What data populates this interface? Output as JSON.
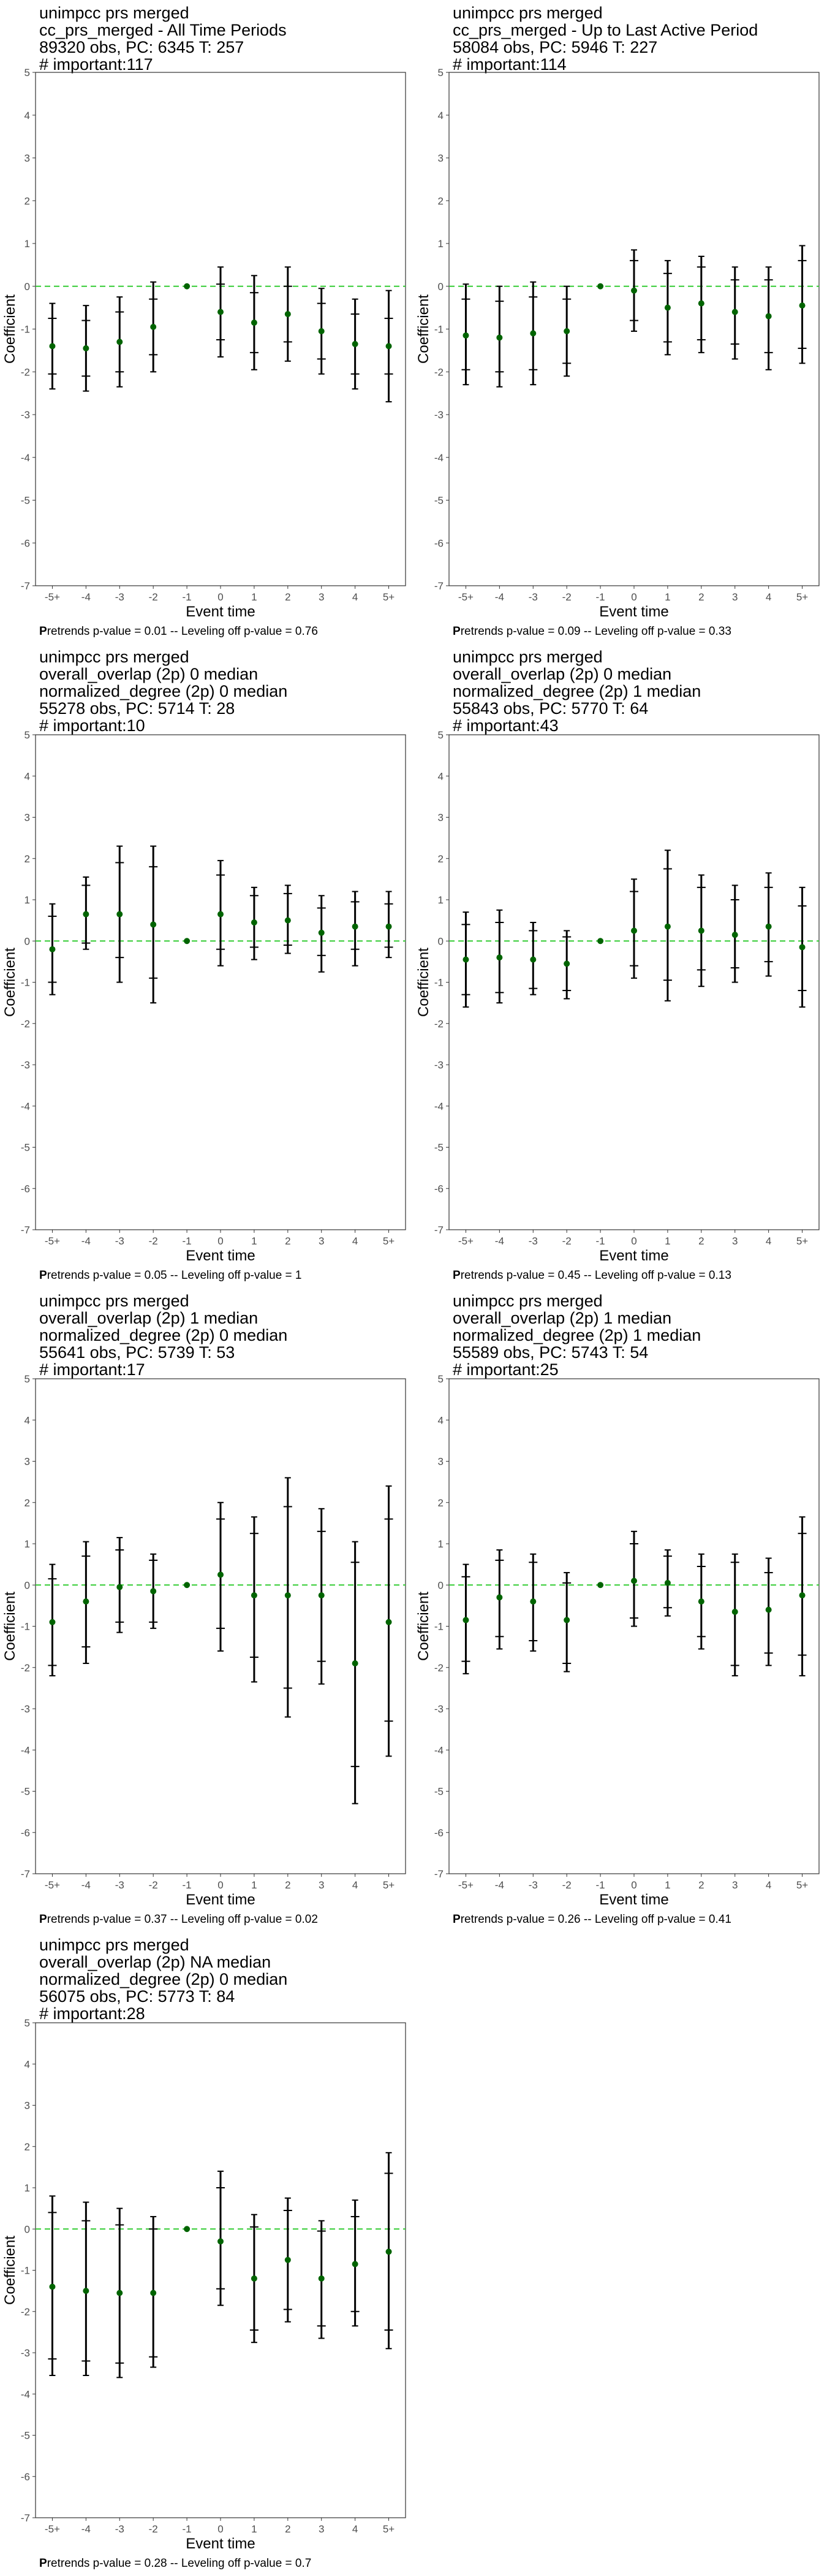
{
  "chart_data": [
    {
      "type": "errorbar",
      "title_lines": [
        "unimpcc prs merged",
        "cc_prs_merged - All Time Periods",
        "89320 obs, PC: 6345 T: 257",
        "# important:117"
      ],
      "xlabel": "Event time",
      "ylabel": "Coefficient",
      "categories": [
        "-5+",
        "-4",
        "-3",
        "-2",
        "-1",
        "0",
        "1",
        "2",
        "3",
        "4",
        "5+"
      ],
      "ylim": [
        -7,
        5
      ],
      "yticks": [
        -7,
        -6,
        -5,
        -4,
        -3,
        -2,
        -1,
        0,
        1,
        2,
        3,
        4,
        5
      ],
      "reference_line": 0,
      "point_color": "#006400",
      "reference_color": "#33cc33",
      "estimate": [
        -1.4,
        -1.45,
        -1.3,
        -0.95,
        0,
        -0.6,
        -0.85,
        -0.65,
        -1.05,
        -1.35,
        -1.4
      ],
      "ci_inner": [
        [
          -2.05,
          -0.75
        ],
        [
          -2.1,
          -0.8
        ],
        [
          -2.0,
          -0.6
        ],
        [
          -1.6,
          -0.3
        ],
        [
          0,
          0
        ],
        [
          -1.25,
          0.05
        ],
        [
          -1.55,
          -0.15
        ],
        [
          -1.3,
          0.0
        ],
        [
          -1.7,
          -0.4
        ],
        [
          -2.05,
          -0.65
        ],
        [
          -2.05,
          -0.75
        ]
      ],
      "ci_outer": [
        [
          -2.4,
          -0.4
        ],
        [
          -2.45,
          -0.45
        ],
        [
          -2.35,
          -0.25
        ],
        [
          -2.0,
          0.1
        ],
        [
          0,
          0
        ],
        [
          -1.65,
          0.45
        ],
        [
          -1.95,
          0.25
        ],
        [
          -1.75,
          0.45
        ],
        [
          -2.05,
          -0.05
        ],
        [
          -2.4,
          -0.3
        ],
        [
          -2.7,
          -0.1
        ]
      ],
      "caption_bold": "P",
      "caption": "retrends p-value = 0.01 -- Leveling off p-value = 0.76"
    },
    {
      "type": "errorbar",
      "title_lines": [
        "unimpcc prs merged",
        "cc_prs_merged - Up to Last Active Period",
        "58084 obs, PC: 5946 T: 227",
        "# important:114"
      ],
      "xlabel": "Event time",
      "ylabel": "Coefficient",
      "categories": [
        "-5+",
        "-4",
        "-3",
        "-2",
        "-1",
        "0",
        "1",
        "2",
        "3",
        "4",
        "5+"
      ],
      "ylim": [
        -7,
        5
      ],
      "yticks": [
        -7,
        -6,
        -5,
        -4,
        -3,
        -2,
        -1,
        0,
        1,
        2,
        3,
        4,
        5
      ],
      "reference_line": 0,
      "point_color": "#006400",
      "reference_color": "#33cc33",
      "estimate": [
        -1.15,
        -1.2,
        -1.1,
        -1.05,
        0,
        -0.1,
        -0.5,
        -0.4,
        -0.6,
        -0.7,
        -0.45
      ],
      "ci_inner": [
        [
          -1.95,
          -0.3
        ],
        [
          -2.0,
          -0.35
        ],
        [
          -1.95,
          -0.25
        ],
        [
          -1.8,
          -0.3
        ],
        [
          0,
          0
        ],
        [
          -0.8,
          0.6
        ],
        [
          -1.3,
          0.3
        ],
        [
          -1.25,
          0.45
        ],
        [
          -1.35,
          0.15
        ],
        [
          -1.55,
          0.15
        ],
        [
          -1.45,
          0.6
        ]
      ],
      "ci_outer": [
        [
          -2.3,
          0.05
        ],
        [
          -2.35,
          0.0
        ],
        [
          -2.3,
          0.1
        ],
        [
          -2.1,
          0.0
        ],
        [
          0,
          0
        ],
        [
          -1.05,
          0.85
        ],
        [
          -1.6,
          0.6
        ],
        [
          -1.55,
          0.7
        ],
        [
          -1.7,
          0.45
        ],
        [
          -1.95,
          0.45
        ],
        [
          -1.8,
          0.95
        ]
      ],
      "caption_bold": "P",
      "caption": "retrends p-value = 0.09 -- Leveling off p-value = 0.33"
    },
    {
      "type": "errorbar",
      "title_lines": [
        "unimpcc prs merged",
        "overall_overlap (2p) 0 median",
        "normalized_degree (2p) 0 median",
        "55278 obs, PC: 5714 T: 28",
        "# important:10"
      ],
      "xlabel": "Event time",
      "ylabel": "Coefficient",
      "categories": [
        "-5+",
        "-4",
        "-3",
        "-2",
        "-1",
        "0",
        "1",
        "2",
        "3",
        "4",
        "5+"
      ],
      "ylim": [
        -7,
        5
      ],
      "yticks": [
        -7,
        -6,
        -5,
        -4,
        -3,
        -2,
        -1,
        0,
        1,
        2,
        3,
        4,
        5
      ],
      "reference_line": 0,
      "point_color": "#006400",
      "reference_color": "#33cc33",
      "estimate": [
        -0.2,
        0.65,
        0.65,
        0.4,
        0,
        0.65,
        0.45,
        0.5,
        0.2,
        0.35,
        0.35
      ],
      "ci_inner": [
        [
          -1.0,
          0.6
        ],
        [
          -0.05,
          1.35
        ],
        [
          -0.4,
          1.9
        ],
        [
          -0.9,
          1.8
        ],
        [
          0,
          0
        ],
        [
          -0.2,
          1.6
        ],
        [
          -0.15,
          1.1
        ],
        [
          -0.1,
          1.15
        ],
        [
          -0.35,
          0.8
        ],
        [
          -0.2,
          0.95
        ],
        [
          -0.15,
          0.9
        ]
      ],
      "ci_outer": [
        [
          -1.3,
          0.9
        ],
        [
          -0.2,
          1.55
        ],
        [
          -1.0,
          2.3
        ],
        [
          -1.5,
          2.3
        ],
        [
          0,
          0
        ],
        [
          -0.6,
          1.95
        ],
        [
          -0.45,
          1.3
        ],
        [
          -0.3,
          1.35
        ],
        [
          -0.75,
          1.1
        ],
        [
          -0.6,
          1.2
        ],
        [
          -0.4,
          1.2
        ]
      ],
      "caption_bold": "P",
      "caption": "retrends p-value = 0.05 -- Leveling off p-value = 1"
    },
    {
      "type": "errorbar",
      "title_lines": [
        "unimpcc prs merged",
        "overall_overlap (2p) 0 median",
        "normalized_degree (2p) 1 median",
        "55843 obs, PC: 5770 T: 64",
        "# important:43"
      ],
      "xlabel": "Event time",
      "ylabel": "Coefficient",
      "categories": [
        "-5+",
        "-4",
        "-3",
        "-2",
        "-1",
        "0",
        "1",
        "2",
        "3",
        "4",
        "5+"
      ],
      "ylim": [
        -7,
        5
      ],
      "yticks": [
        -7,
        -6,
        -5,
        -4,
        -3,
        -2,
        -1,
        0,
        1,
        2,
        3,
        4,
        5
      ],
      "reference_line": 0,
      "point_color": "#006400",
      "reference_color": "#33cc33",
      "estimate": [
        -0.45,
        -0.4,
        -0.45,
        -0.55,
        0,
        0.25,
        0.35,
        0.25,
        0.15,
        0.35,
        -0.15
      ],
      "ci_inner": [
        [
          -1.3,
          0.4
        ],
        [
          -1.25,
          0.45
        ],
        [
          -1.15,
          0.25
        ],
        [
          -1.2,
          0.1
        ],
        [
          0,
          0
        ],
        [
          -0.6,
          1.2
        ],
        [
          -0.95,
          1.75
        ],
        [
          -0.7,
          1.3
        ],
        [
          -0.65,
          1.0
        ],
        [
          -0.5,
          1.3
        ],
        [
          -1.2,
          0.85
        ]
      ],
      "ci_outer": [
        [
          -1.6,
          0.7
        ],
        [
          -1.5,
          0.75
        ],
        [
          -1.3,
          0.45
        ],
        [
          -1.4,
          0.25
        ],
        [
          0,
          0
        ],
        [
          -0.9,
          1.5
        ],
        [
          -1.45,
          2.2
        ],
        [
          -1.1,
          1.6
        ],
        [
          -1.0,
          1.35
        ],
        [
          -0.85,
          1.65
        ],
        [
          -1.6,
          1.3
        ]
      ],
      "caption_bold": "P",
      "caption": "retrends p-value = 0.45 -- Leveling off p-value = 0.13"
    },
    {
      "type": "errorbar",
      "title_lines": [
        "unimpcc prs merged",
        "overall_overlap (2p) 1 median",
        "normalized_degree (2p) 0 median",
        "55641 obs, PC: 5739 T: 53",
        "# important:17"
      ],
      "xlabel": "Event time",
      "ylabel": "Coefficient",
      "categories": [
        "-5+",
        "-4",
        "-3",
        "-2",
        "-1",
        "0",
        "1",
        "2",
        "3",
        "4",
        "5+"
      ],
      "ylim": [
        -7,
        5
      ],
      "yticks": [
        -7,
        -6,
        -5,
        -4,
        -3,
        -2,
        -1,
        0,
        1,
        2,
        3,
        4,
        5
      ],
      "reference_line": 0,
      "point_color": "#006400",
      "reference_color": "#33cc33",
      "estimate": [
        -0.9,
        -0.4,
        -0.05,
        -0.15,
        0,
        0.25,
        -0.25,
        -0.25,
        -0.25,
        -1.9,
        -0.9
      ],
      "ci_inner": [
        [
          -1.95,
          0.15
        ],
        [
          -1.5,
          0.7
        ],
        [
          -0.9,
          0.85
        ],
        [
          -0.9,
          0.6
        ],
        [
          0,
          0
        ],
        [
          -1.05,
          1.6
        ],
        [
          -1.75,
          1.25
        ],
        [
          -2.5,
          1.9
        ],
        [
          -1.85,
          1.3
        ],
        [
          -4.4,
          0.55
        ],
        [
          -3.3,
          1.6
        ]
      ],
      "ci_outer": [
        [
          -2.2,
          0.5
        ],
        [
          -1.9,
          1.05
        ],
        [
          -1.15,
          1.15
        ],
        [
          -1.05,
          0.75
        ],
        [
          0,
          0
        ],
        [
          -1.6,
          2.0
        ],
        [
          -2.35,
          1.65
        ],
        [
          -3.2,
          2.6
        ],
        [
          -2.4,
          1.85
        ],
        [
          -5.3,
          1.05
        ],
        [
          -4.15,
          2.4
        ]
      ],
      "caption_bold": "P",
      "caption": "retrends p-value = 0.37 -- Leveling off p-value = 0.02"
    },
    {
      "type": "errorbar",
      "title_lines": [
        "unimpcc prs merged",
        "overall_overlap (2p) 1 median",
        "normalized_degree (2p) 1 median",
        "55589 obs, PC: 5743 T: 54",
        "# important:25"
      ],
      "xlabel": "Event time",
      "ylabel": "Coefficient",
      "categories": [
        "-5+",
        "-4",
        "-3",
        "-2",
        "-1",
        "0",
        "1",
        "2",
        "3",
        "4",
        "5+"
      ],
      "ylim": [
        -7,
        5
      ],
      "yticks": [
        -7,
        -6,
        -5,
        -4,
        -3,
        -2,
        -1,
        0,
        1,
        2,
        3,
        4,
        5
      ],
      "reference_line": 0,
      "point_color": "#006400",
      "reference_color": "#33cc33",
      "estimate": [
        -0.85,
        -0.3,
        -0.4,
        -0.85,
        0,
        0.1,
        0.05,
        -0.4,
        -0.65,
        -0.6,
        -0.25
      ],
      "ci_inner": [
        [
          -1.85,
          0.2
        ],
        [
          -1.25,
          0.6
        ],
        [
          -1.35,
          0.55
        ],
        [
          -1.9,
          0.05
        ],
        [
          0,
          0
        ],
        [
          -0.8,
          1.0
        ],
        [
          -0.55,
          0.7
        ],
        [
          -1.25,
          0.45
        ],
        [
          -1.95,
          0.55
        ],
        [
          -1.65,
          0.3
        ],
        [
          -1.7,
          1.25
        ]
      ],
      "ci_outer": [
        [
          -2.15,
          0.5
        ],
        [
          -1.55,
          0.85
        ],
        [
          -1.6,
          0.75
        ],
        [
          -2.1,
          0.3
        ],
        [
          0,
          0
        ],
        [
          -1.0,
          1.3
        ],
        [
          -0.75,
          0.85
        ],
        [
          -1.55,
          0.75
        ],
        [
          -2.2,
          0.75
        ],
        [
          -1.95,
          0.65
        ],
        [
          -2.2,
          1.65
        ]
      ],
      "caption_bold": "P",
      "caption": "retrends p-value = 0.26 -- Leveling off p-value = 0.41"
    },
    {
      "type": "errorbar",
      "title_lines": [
        "unimpcc prs merged",
        "overall_overlap (2p) NA median",
        "normalized_degree (2p) 0 median",
        "56075 obs, PC: 5773 T: 84",
        "# important:28"
      ],
      "xlabel": "Event time",
      "ylabel": "Coefficient",
      "categories": [
        "-5+",
        "-4",
        "-3",
        "-2",
        "-1",
        "0",
        "1",
        "2",
        "3",
        "4",
        "5+"
      ],
      "ylim": [
        -7,
        5
      ],
      "yticks": [
        -7,
        -6,
        -5,
        -4,
        -3,
        -2,
        -1,
        0,
        1,
        2,
        3,
        4,
        5
      ],
      "reference_line": 0,
      "point_color": "#006400",
      "reference_color": "#33cc33",
      "estimate": [
        -1.4,
        -1.5,
        -1.55,
        -1.55,
        0,
        -0.3,
        -1.2,
        -0.75,
        -1.2,
        -0.85,
        -0.55
      ],
      "ci_inner": [
        [
          -3.15,
          0.4
        ],
        [
          -3.2,
          0.2
        ],
        [
          -3.25,
          0.1
        ],
        [
          -3.1,
          0.0
        ],
        [
          0,
          0
        ],
        [
          -1.45,
          1.0
        ],
        [
          -2.45,
          0.05
        ],
        [
          -1.95,
          0.45
        ],
        [
          -2.35,
          -0.05
        ],
        [
          -2.0,
          0.3
        ],
        [
          -2.45,
          1.35
        ]
      ],
      "ci_outer": [
        [
          -3.55,
          0.8
        ],
        [
          -3.55,
          0.65
        ],
        [
          -3.6,
          0.5
        ],
        [
          -3.35,
          0.3
        ],
        [
          0,
          0
        ],
        [
          -1.85,
          1.4
        ],
        [
          -2.75,
          0.35
        ],
        [
          -2.25,
          0.75
        ],
        [
          -2.65,
          0.2
        ],
        [
          -2.35,
          0.7
        ],
        [
          -2.9,
          1.85
        ]
      ],
      "caption_bold": "P",
      "caption": "retrends p-value = 0.28 -- Leveling off p-value = 0.7"
    }
  ]
}
